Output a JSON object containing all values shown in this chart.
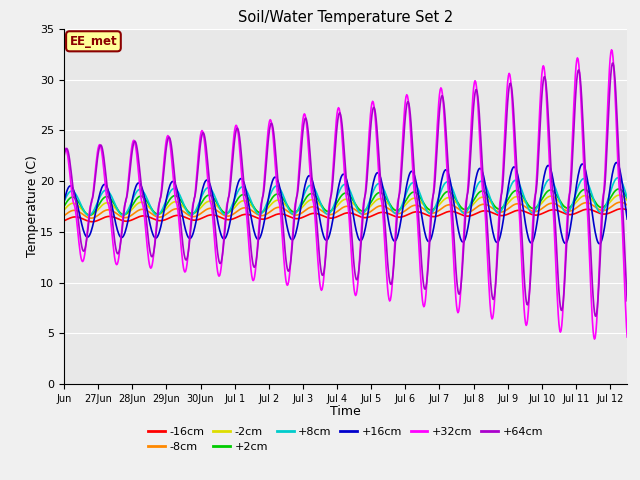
{
  "title": "Soil/Water Temperature Set 2",
  "xlabel": "Time",
  "ylabel": "Temperature (C)",
  "ylim": [
    0,
    35
  ],
  "yticks": [
    0,
    5,
    10,
    15,
    20,
    25,
    30,
    35
  ],
  "background_color": "#f0f0f0",
  "plot_bg_color": "#e8e8e8",
  "annotation_text": "EE_met",
  "annotation_color": "#8b0000",
  "annotation_bg": "#ffff99",
  "series": [
    {
      "label": "-16cm",
      "color": "#ff0000"
    },
    {
      "label": "-8cm",
      "color": "#ff8800"
    },
    {
      "label": "-2cm",
      "color": "#dddd00"
    },
    {
      "label": "+2cm",
      "color": "#00cc00"
    },
    {
      "label": "+8cm",
      "color": "#00cccc"
    },
    {
      "label": "+16cm",
      "color": "#0000cc"
    },
    {
      "label": "+32cm",
      "color": "#ff00ff"
    },
    {
      "label": "+64cm",
      "color": "#aa00cc"
    }
  ],
  "tick_labels": [
    "Jun",
    "27Jun",
    "28Jun",
    "29Jun",
    "30Jun",
    "Jul 1",
    "Jul 2",
    "Jul 3",
    "Jul 4",
    "Jul 5",
    "Jul 6",
    "Jul 7",
    "Jul 8",
    "Jul 9",
    "Jul 10",
    "Jul 11",
    "Jul 12"
  ],
  "legend_ncol_row1": 6,
  "legend_labels_row1": [
    "-16cm",
    "-8cm",
    "-2cm",
    "+2cm",
    "+8cm",
    "+16cm"
  ],
  "legend_labels_row2": [
    "+32cm",
    "+64cm"
  ]
}
